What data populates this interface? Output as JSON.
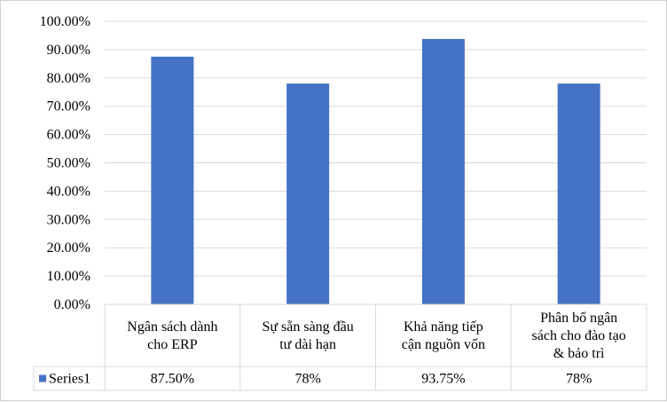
{
  "chart_data": {
    "type": "bar",
    "categories": [
      [
        "Ngân sách dành",
        "cho ERP"
      ],
      [
        "Sự sẵn sàng đầu",
        "tư dài hạn"
      ],
      [
        "Khả năng tiếp",
        "cận nguồn vốn"
      ],
      [
        "Phân bổ ngân",
        "sách cho đào tạo",
        "& bảo trì"
      ]
    ],
    "series": [
      {
        "name": "Series1",
        "values": [
          87.5,
          78,
          93.75,
          78
        ],
        "labels": [
          "87.50%",
          "78%",
          "93.75%",
          "78%"
        ],
        "color": "#4472c4"
      }
    ],
    "ylim": [
      0,
      100
    ],
    "yticks": [
      "0.00%",
      "10.00%",
      "20.00%",
      "30.00%",
      "40.00%",
      "50.00%",
      "60.00%",
      "70.00%",
      "80.00%",
      "90.00%",
      "100.00%"
    ],
    "grid": true,
    "legend": "data-table",
    "title": "",
    "xlabel": "",
    "ylabel": ""
  }
}
